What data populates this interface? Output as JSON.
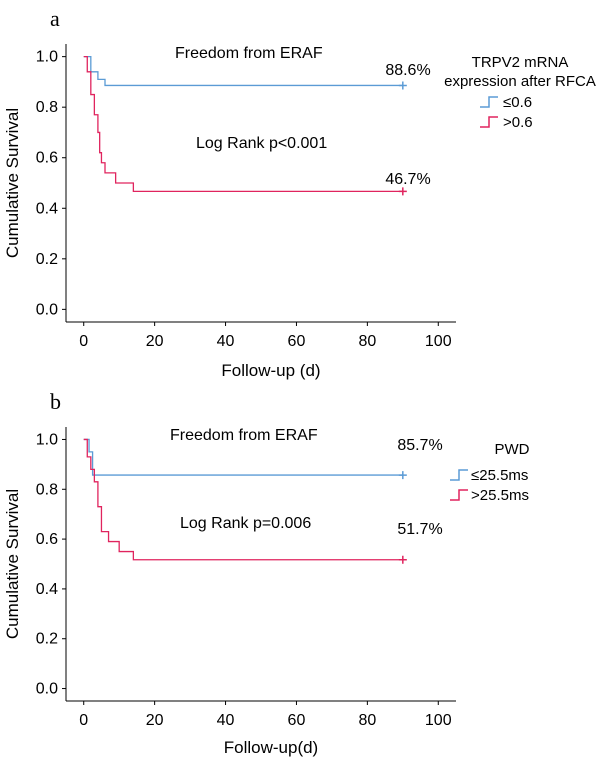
{
  "panels": [
    {
      "letter": "a",
      "annotation_top": "Freedom from ERAF",
      "annotation_mid": "Log Rank p<0.001",
      "legend_title": [
        "TRPV2 mRNA",
        "expression after RFCA"
      ],
      "chart_data": {
        "type": "line",
        "subtype": "kaplan-meier step",
        "xlabel": "Follow-up (d)",
        "ylabel": "Cumulative Survival",
        "xlim": [
          -5,
          105
        ],
        "ylim": [
          -0.05,
          1.05
        ],
        "xticks": [
          0,
          20,
          40,
          60,
          80,
          100
        ],
        "yticks": [
          0.0,
          0.2,
          0.4,
          0.6,
          0.8,
          1.0
        ],
        "xtick_labels": [
          "0",
          "20",
          "40",
          "60",
          "80",
          "100"
        ],
        "ytick_labels": [
          "0.0",
          "0.2",
          "0.4",
          "0.6",
          "0.8",
          "1.0"
        ],
        "legend_position": "right",
        "series": [
          {
            "name": "≤0.6",
            "color": "#5b9bd5",
            "end_label": "88.6%",
            "censor_x": 90,
            "steps": [
              [
                0,
                1.0
              ],
              [
                2,
                0.94
              ],
              [
                4,
                0.91
              ],
              [
                6,
                0.886
              ],
              [
                90,
                0.886
              ]
            ]
          },
          {
            "name": ">0.6",
            "color": "#e0245e",
            "end_label": "46.7%",
            "censor_x": 90,
            "steps": [
              [
                0,
                1.0
              ],
              [
                1,
                0.94
              ],
              [
                2,
                0.85
              ],
              [
                3,
                0.77
              ],
              [
                4,
                0.7
              ],
              [
                4.5,
                0.62
              ],
              [
                5,
                0.58
              ],
              [
                6,
                0.54
              ],
              [
                9,
                0.5
              ],
              [
                14,
                0.467
              ],
              [
                90,
                0.467
              ]
            ]
          }
        ]
      }
    },
    {
      "letter": "b",
      "annotation_top": "Freedom from ERAF",
      "annotation_mid": "Log Rank p=0.006",
      "legend_title": [
        "PWD"
      ],
      "chart_data": {
        "type": "line",
        "subtype": "kaplan-meier step",
        "xlabel": "Follow-up(d)",
        "ylabel": "Cumulative Survival",
        "xlim": [
          -5,
          105
        ],
        "ylim": [
          -0.05,
          1.05
        ],
        "xticks": [
          0,
          20,
          40,
          60,
          80,
          100
        ],
        "yticks": [
          0.0,
          0.2,
          0.4,
          0.6,
          0.8,
          1.0
        ],
        "xtick_labels": [
          "0",
          "20",
          "40",
          "60",
          "80",
          "100"
        ],
        "ytick_labels": [
          "0.0",
          "0.2",
          "0.4",
          "0.6",
          "0.8",
          "1.0"
        ],
        "legend_position": "right",
        "series": [
          {
            "name": "≤25.5ms",
            "color": "#5b9bd5",
            "end_label": "85.7%",
            "censor_x": 90,
            "steps": [
              [
                0,
                1.0
              ],
              [
                1.5,
                0.95
              ],
              [
                2.5,
                0.857
              ],
              [
                90,
                0.857
              ]
            ]
          },
          {
            "name": ">25.5ms",
            "color": "#e0245e",
            "end_label": "51.7%",
            "censor_x": 90,
            "steps": [
              [
                0,
                1.0
              ],
              [
                1,
                0.93
              ],
              [
                2,
                0.88
              ],
              [
                3,
                0.83
              ],
              [
                4,
                0.73
              ],
              [
                5,
                0.63
              ],
              [
                7,
                0.59
              ],
              [
                10,
                0.55
              ],
              [
                14,
                0.517
              ],
              [
                90,
                0.517
              ]
            ]
          }
        ]
      }
    }
  ]
}
